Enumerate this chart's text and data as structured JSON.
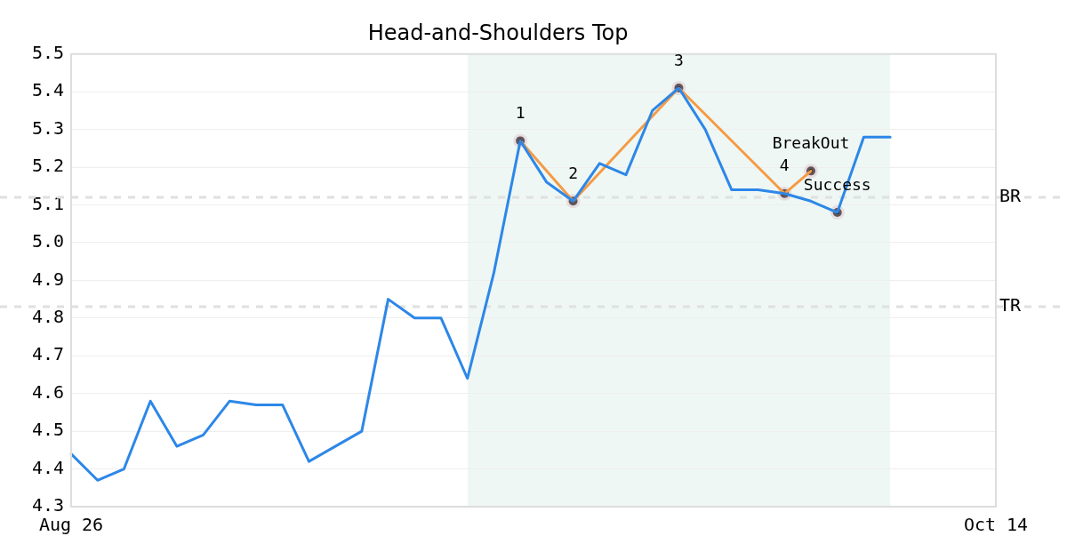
{
  "chart_data": {
    "type": "line",
    "title": "Head-and-Shoulders Top",
    "categories": [
      "Aug 26",
      null,
      null,
      null,
      null,
      null,
      null,
      null,
      null,
      null,
      null,
      null,
      null,
      null,
      null,
      null,
      null,
      null,
      null,
      null,
      null,
      null,
      null,
      null,
      null,
      null,
      null,
      null,
      null,
      null,
      null,
      null,
      null,
      null,
      null,
      "Oct 14"
    ],
    "series": [
      {
        "color": "#2d87e8",
        "values": [
          4.44,
          4.37,
          4.4,
          4.58,
          4.46,
          4.49,
          4.58,
          4.57,
          4.57,
          4.42,
          4.46,
          4.5,
          4.85,
          4.8,
          4.8,
          4.64,
          4.92,
          5.27,
          5.16,
          5.11,
          5.21,
          5.18,
          5.35,
          5.41,
          5.3,
          5.14,
          5.14,
          5.13,
          5.11,
          5.08,
          5.28,
          5.28,
          null,
          null,
          null,
          null
        ]
      },
      {
        "color": "#f59b45",
        "values": [
          null,
          null,
          null,
          null,
          null,
          null,
          null,
          null,
          null,
          null,
          null,
          null,
          null,
          null,
          null,
          null,
          null,
          5.27,
          null,
          5.11,
          null,
          null,
          null,
          5.41,
          null,
          null,
          null,
          5.13,
          5.19,
          null,
          null,
          null,
          null,
          null,
          null,
          null
        ]
      },
      {
        "type": "scatter",
        "color": "#000000",
        "marker": "circle",
        "values": [
          null,
          null,
          null,
          null,
          null,
          null,
          null,
          null,
          null,
          null,
          null,
          null,
          null,
          null,
          null,
          null,
          null,
          5.27,
          null,
          5.11,
          null,
          null,
          null,
          5.41,
          null,
          null,
          null,
          5.13,
          5.19,
          5.08,
          null,
          null,
          null,
          null,
          null,
          null
        ]
      }
    ],
    "annotations": [
      {
        "text": "1",
        "y": 5.27
      },
      {
        "text": "2",
        "y": 5.11
      },
      {
        "text": "3",
        "y": 5.41
      },
      {
        "text": "4",
        "y": 5.13
      },
      {
        "text": "BreakOut",
        "y": 5.19
      },
      {
        "text": "Success",
        "y": 5.08
      }
    ],
    "ylim": [
      4.3,
      5.5
    ],
    "yticks": [
      4.3,
      4.4,
      4.5,
      4.6,
      4.7,
      4.8,
      4.9,
      {
        "value": 5,
        "label": "5.0"
      },
      5.1,
      5.2,
      5.3,
      5.4,
      5.5
    ],
    "grid": "y",
    "line_style": "solid",
    "ref_lines": [
      {
        "axis": "y",
        "value": 5.12,
        "label": "BR",
        "color": "#e0e0e0",
        "line_style": "dashed"
      },
      {
        "axis": "y",
        "value": 4.83,
        "label": "TR",
        "color": "#e0e0e0",
        "line_style": "dashed"
      }
    ]
  }
}
